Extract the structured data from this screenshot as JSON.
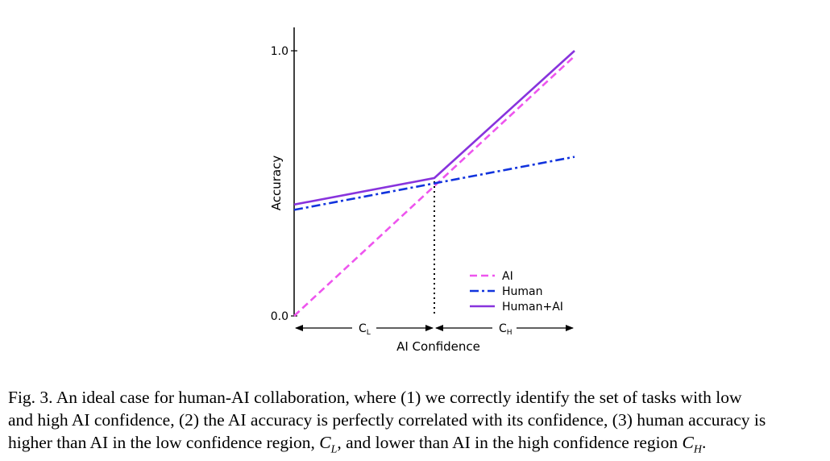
{
  "chart_data": {
    "type": "line",
    "title": "",
    "xlabel": "AI Confidence",
    "ylabel": "Accuracy",
    "xlim": [
      0,
      1
    ],
    "ylim": [
      0,
      1
    ],
    "y_ticks": [
      {
        "value": 0.0,
        "label": "0.0"
      },
      {
        "value": 1.0,
        "label": "1.0"
      }
    ],
    "grid": false,
    "legend_position": "bottom-right",
    "threshold": 0.5,
    "regions": [
      {
        "label_main": "C",
        "label_sub": "L",
        "from": 0.0,
        "to": 0.5
      },
      {
        "label_main": "C",
        "label_sub": "H",
        "from": 0.5,
        "to": 1.0
      }
    ],
    "series": [
      {
        "name": "AI",
        "style": "dashed",
        "color": "#ee55ee",
        "points": [
          [
            0.0,
            0.0
          ],
          [
            1.0,
            0.98
          ]
        ]
      },
      {
        "name": "Human",
        "style": "dashdot",
        "color": "#1133dd",
        "points": [
          [
            0.0,
            0.4
          ],
          [
            1.0,
            0.6
          ]
        ]
      },
      {
        "name": "Human+AI",
        "style": "solid",
        "color": "#8833dd",
        "points": [
          [
            0.0,
            0.42
          ],
          [
            0.5,
            0.52
          ],
          [
            1.0,
            1.0
          ]
        ]
      }
    ]
  },
  "caption": {
    "lines": [
      [
        {
          "text": "Fig. 3.  An ideal case for human-AI collaboration, where (1) we correctly identify the set of tasks with low"
        }
      ],
      [
        {
          "text": "and high AI confidence, (2) the AI accuracy is perfectly correlated with its confidence, (3) human accuracy is"
        }
      ],
      [
        {
          "text": "higher than AI in the low confidence region, "
        },
        {
          "math": "C",
          "sub": "L"
        },
        {
          "text": ", and lower than AI in the high confidence region "
        },
        {
          "math": "C",
          "sub": "H"
        },
        {
          "text": "."
        }
      ]
    ]
  }
}
